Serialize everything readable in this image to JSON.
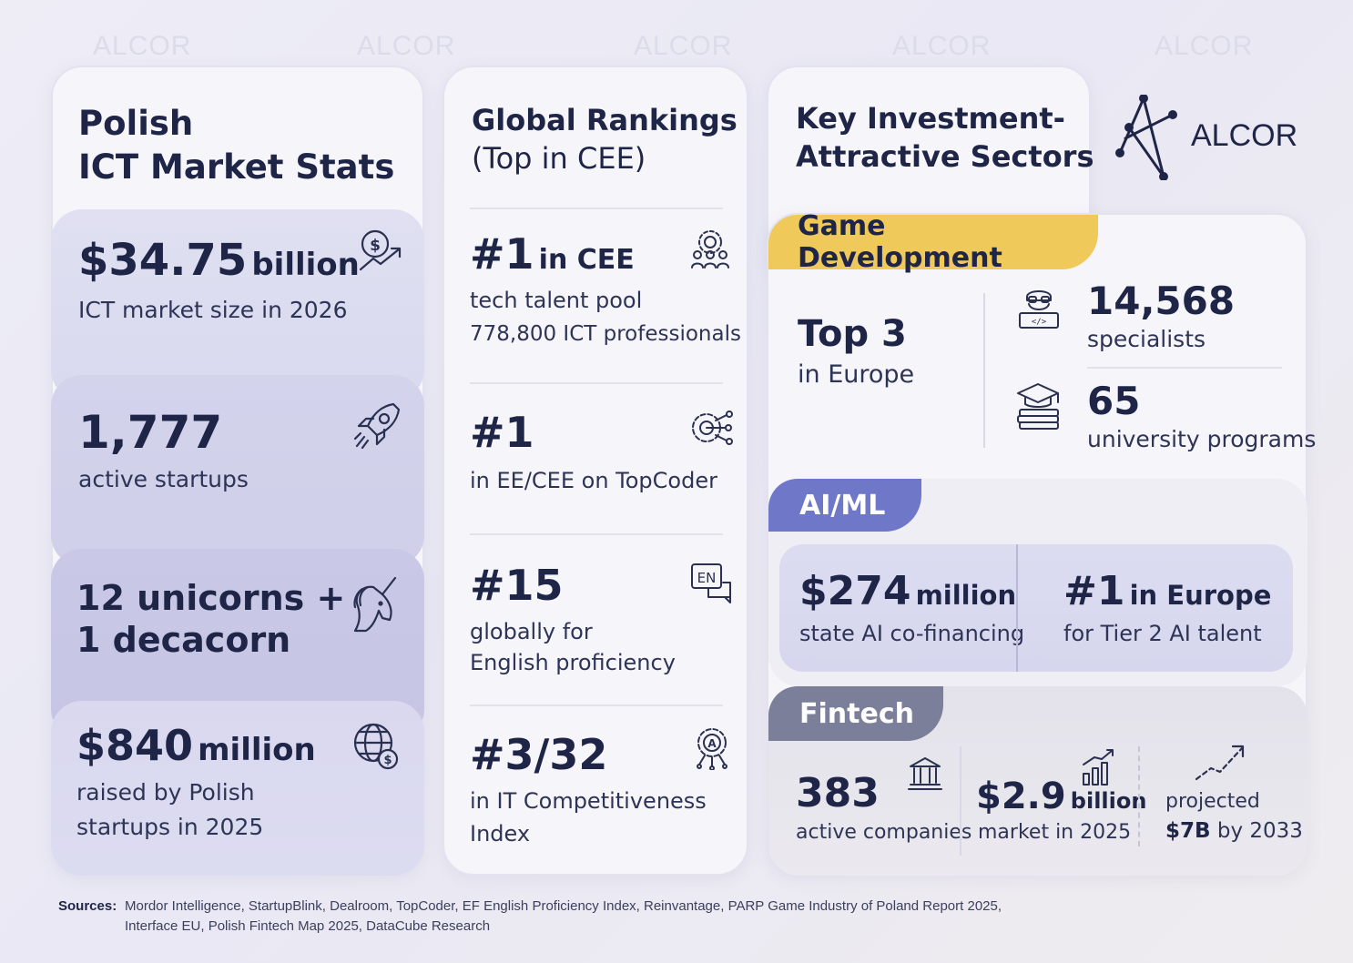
{
  "brand": {
    "name": "ALCOR",
    "watermark": "ALCOR"
  },
  "colors": {
    "navy": "#1f2547",
    "game_tag": "#efc95a",
    "aiml_tag": "#6f78c8",
    "fintech_tag": "#7c7f9a",
    "panel_light": "#dcdcf0",
    "panel_mid": "#c9c8e6"
  },
  "col1": {
    "title_line1": "Polish",
    "title_line2": "ICT Market Stats",
    "stats": [
      {
        "value": "$34.75",
        "unit": "billion",
        "label": "ICT market size in 2026",
        "icon": "money-growth-icon"
      },
      {
        "value": "1,777",
        "label": "active startups",
        "icon": "rocket-icon"
      },
      {
        "value_line1": "12 unicorns +",
        "value_line2": "1 decacorn",
        "icon": "unicorn-icon"
      },
      {
        "value": "$840",
        "unit": "million",
        "label_line1": "raised by Polish",
        "label_line2": "startups in 2025",
        "icon": "globe-money-icon"
      }
    ]
  },
  "col2": {
    "title_line1": "Global Rankings",
    "title_line2": "(Top in CEE)",
    "rankings": [
      {
        "rank": "#1",
        "rank_suffix": "in CEE",
        "label_line1": "tech talent pool",
        "label_line2": "778,800 ICT professionals",
        "icon": "team-gear-icon"
      },
      {
        "rank": "#1",
        "label_line1": "in EE/CEE on TopCoder",
        "icon": "gear-circuit-icon"
      },
      {
        "rank": "#15",
        "label_line1": "globally for",
        "label_line2": "English proficiency",
        "icon": "english-chat-icon",
        "icon_text": "EN"
      },
      {
        "rank": "#3/32",
        "label_line1": "in IT Competitiveness",
        "label_line2": "Index",
        "icon": "ai-gear-icon",
        "icon_text": "A"
      }
    ]
  },
  "col3": {
    "title_line1": "Key Investment-",
    "title_line2": "Attractive Sectors",
    "game": {
      "tag": "Game Development",
      "top_value": "Top 3",
      "top_label": "in Europe",
      "specialists_value": "14,568",
      "specialists_label": "specialists",
      "programs_value": "65",
      "programs_label": "university programs"
    },
    "aiml": {
      "tag": "AI/ML",
      "left_value": "$274",
      "left_unit": "million",
      "left_label": "state AI co-financing",
      "right_value": "#1",
      "right_suffix": "in Europe",
      "right_label": "for Tier 2 AI talent"
    },
    "fintech": {
      "tag": "Fintech",
      "companies_value": "383",
      "companies_label": "active companies",
      "market_value": "$2.9",
      "market_unit": "billion",
      "market_label": "market in 2025",
      "projected_line1": "projected",
      "projected_value": "$7B",
      "projected_suffix": "by 2033"
    }
  },
  "sources": {
    "label": "Sources:",
    "line1": "Mordor Intelligence, StartupBlink, Dealroom, TopCoder, EF English Proficiency Index, Reinvantage, PARP Game Industry of Poland Report 2025,",
    "line2": "Interface EU, Polish Fintech Map 2025, DataCube Research"
  }
}
